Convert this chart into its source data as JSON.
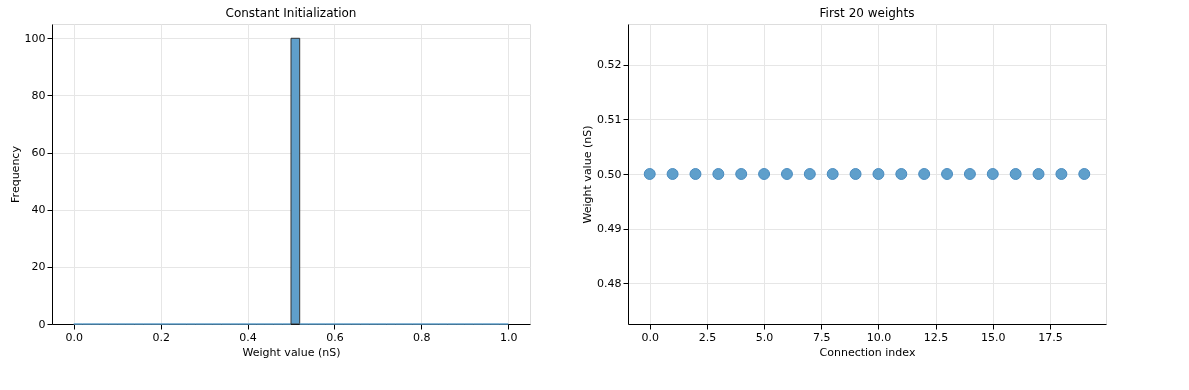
{
  "chart_data": [
    {
      "type": "histogram",
      "title": "Constant Initialization",
      "xlabel": "Weight value (nS)",
      "ylabel": "Frequency",
      "bins": [
        0,
        0.02,
        0.04,
        0.06,
        0.08,
        0.1,
        0.12,
        0.14,
        0.16,
        0.18,
        0.2,
        0.22,
        0.24,
        0.26,
        0.28,
        0.3,
        0.32,
        0.34,
        0.36,
        0.38,
        0.4,
        0.42,
        0.44,
        0.46,
        0.48,
        0.5,
        0.52,
        0.54,
        0.56,
        0.58,
        0.6,
        0.62,
        0.64,
        0.66,
        0.68,
        0.7,
        0.72,
        0.74,
        0.76,
        0.78,
        0.8,
        0.82,
        0.84,
        0.86,
        0.88,
        0.9,
        0.92,
        0.94,
        0.96,
        0.98,
        1.0
      ],
      "values": [
        0,
        0,
        0,
        0,
        0,
        0,
        0,
        0,
        0,
        0,
        0,
        0,
        0,
        0,
        0,
        0,
        0,
        0,
        0,
        0,
        0,
        0,
        0,
        0,
        0,
        100,
        0,
        0,
        0,
        0,
        0,
        0,
        0,
        0,
        0,
        0,
        0,
        0,
        0,
        0,
        0,
        0,
        0,
        0,
        0,
        0,
        0,
        0,
        0,
        0
      ],
      "color": "#5f9fcb",
      "xlim": [
        -0.05,
        1.05
      ],
      "xticks": [
        {
          "value": 0,
          "label": "0.0"
        },
        0.2,
        0.4,
        0.6,
        0.8,
        {
          "value": 1,
          "label": "1.0"
        }
      ],
      "ylim": [
        0,
        105
      ],
      "yticks": [
        0,
        20,
        40,
        60,
        80,
        100
      ],
      "grid": true
    },
    {
      "type": "scatter",
      "title": "First 20 weights",
      "xlabel": "Connection index",
      "ylabel": "Weight value (nS)",
      "x": [
        0,
        1,
        2,
        3,
        4,
        5,
        6,
        7,
        8,
        9,
        10,
        11,
        12,
        13,
        14,
        15,
        16,
        17,
        18,
        19
      ],
      "values": [
        0.5,
        0.5,
        0.5,
        0.5,
        0.5,
        0.5,
        0.5,
        0.5,
        0.5,
        0.5,
        0.5,
        0.5,
        0.5,
        0.5,
        0.5,
        0.5,
        0.5,
        0.5,
        0.5,
        0.5
      ],
      "color": "#5f9fcb",
      "marker": "circle",
      "xlim": [
        -0.95,
        19.95
      ],
      "xticks": [
        {
          "value": 0,
          "label": "0.0"
        },
        2.5,
        {
          "value": 5,
          "label": "5.0"
        },
        7.5,
        {
          "value": 10,
          "label": "10.0"
        },
        12.5,
        {
          "value": 15,
          "label": "15.0"
        },
        17.5
      ],
      "ylim": [
        0.4725,
        0.5275
      ],
      "yticks": [
        0.48,
        0.49,
        {
          "value": 0.5,
          "label": "0.50"
        },
        0.51,
        0.52
      ],
      "grid": true
    }
  ]
}
